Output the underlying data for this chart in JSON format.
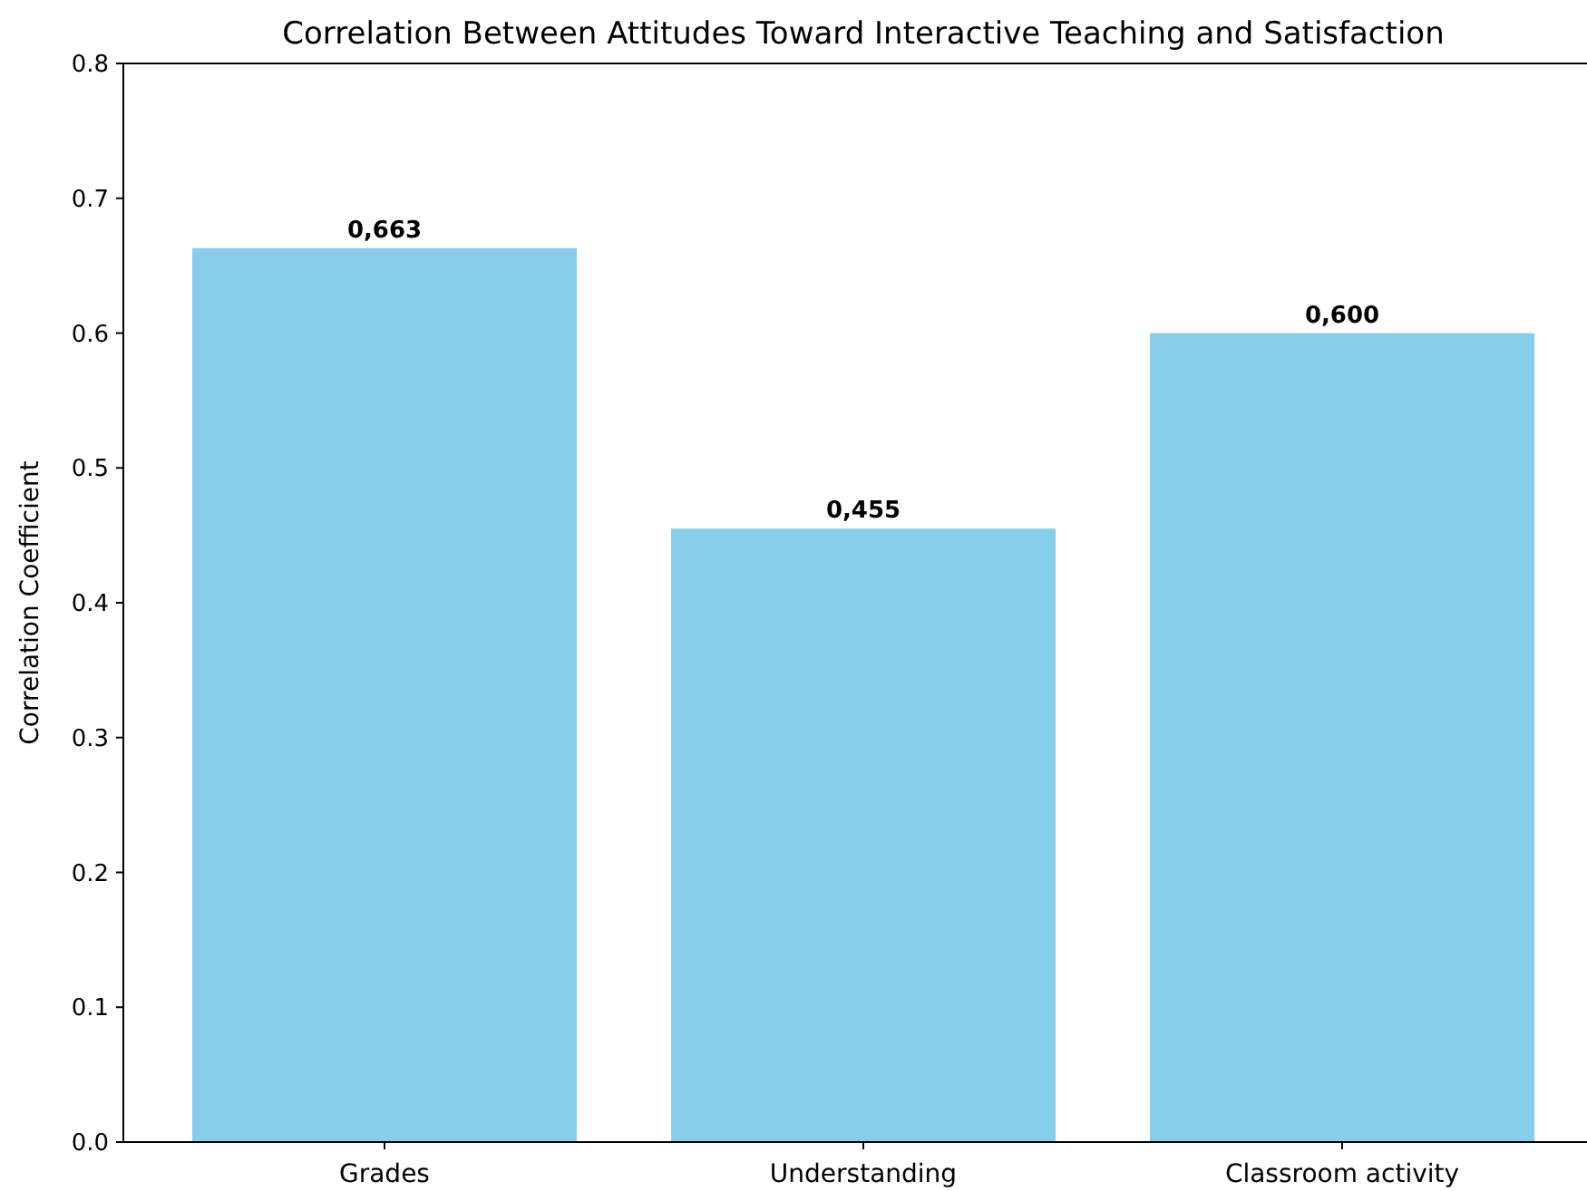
{
  "chart_data": {
    "type": "bar",
    "title": "Correlation Between Attitudes Toward Interactive Teaching and Satisfaction",
    "ylabel": "Correlation Coefficient",
    "categories": [
      "Grades",
      "Understanding",
      "Classroom activity"
    ],
    "values": [
      0.663,
      0.455,
      0.6
    ],
    "color": "#87ceeb",
    "value_labels": [
      "0,663",
      "0,455",
      "0,600"
    ],
    "ylim": [
      0,
      0.8
    ],
    "yticks": [
      {
        "value": 0,
        "label": "0.0"
      },
      {
        "value": 0.1,
        "label": "0.1"
      },
      {
        "value": 0.2,
        "label": "0.2"
      },
      {
        "value": 0.3,
        "label": "0.3"
      },
      {
        "value": 0.4,
        "label": "0.4"
      },
      {
        "value": 0.5,
        "label": "0.5"
      },
      {
        "value": 0.6,
        "label": "0.6"
      },
      {
        "value": 0.7,
        "label": "0.7"
      },
      {
        "value": 0.8,
        "label": "0.8"
      }
    ],
    "grid": false
  }
}
